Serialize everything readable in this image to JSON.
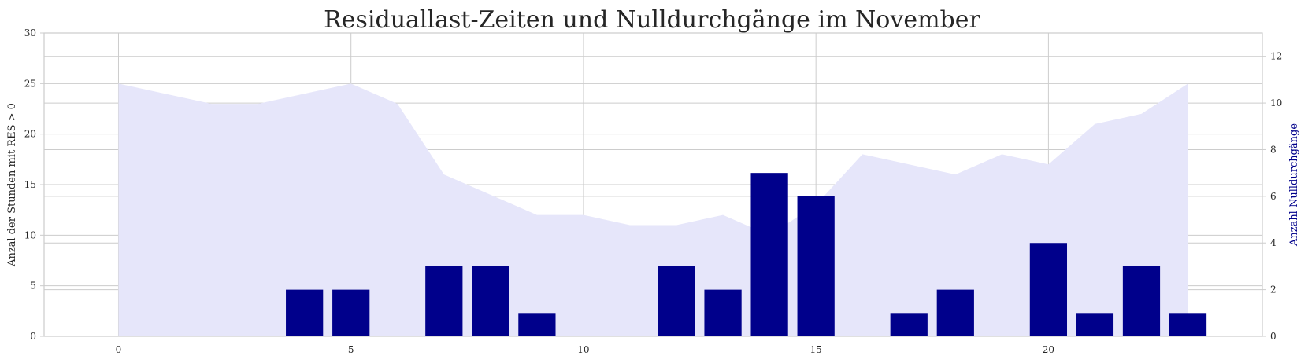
{
  "chart_data": {
    "type": "bar",
    "title": "Residuallast-Zeiten und Nulldurchgänge im November",
    "xlabel": "",
    "xlim": [
      -1.6,
      24.6
    ],
    "xticks": [
      0,
      5,
      10,
      15,
      20
    ],
    "grid": true,
    "area": {
      "axis": "left",
      "color": "#e6e6fa",
      "x": [
        0,
        1,
        2,
        3,
        4,
        5,
        6,
        7,
        8,
        9,
        10,
        11,
        12,
        13,
        14,
        15,
        16,
        17,
        18,
        19,
        20,
        21,
        22,
        23
      ],
      "values": [
        25,
        24,
        23,
        23,
        24,
        25,
        23,
        16,
        14,
        12,
        12,
        11,
        11,
        12,
        10,
        13,
        18,
        17,
        16,
        18,
        17,
        21,
        22,
        25
      ]
    },
    "bars": {
      "axis": "right",
      "color": "#00008b",
      "x": [
        0,
        1,
        2,
        3,
        4,
        5,
        6,
        7,
        8,
        9,
        10,
        11,
        12,
        13,
        14,
        15,
        16,
        17,
        18,
        19,
        20,
        21,
        22,
        23
      ],
      "values": [
        0,
        0,
        0,
        0,
        2,
        2,
        0,
        3,
        3,
        1,
        0,
        0,
        3,
        2,
        7,
        6,
        0,
        1,
        2,
        0,
        4,
        1,
        3,
        1
      ]
    },
    "y_left": {
      "label": "Anzal der Stunden mit RES > 0",
      "ylim": [
        0,
        30
      ],
      "ticks": [
        0,
        5,
        10,
        15,
        20,
        25,
        30
      ]
    },
    "y_right": {
      "label": "Anzahl Nulldurchgänge",
      "color": "#00008b",
      "ylim": [
        0,
        13
      ],
      "ticks": [
        0,
        2,
        4,
        6,
        8,
        10,
        12
      ]
    }
  }
}
